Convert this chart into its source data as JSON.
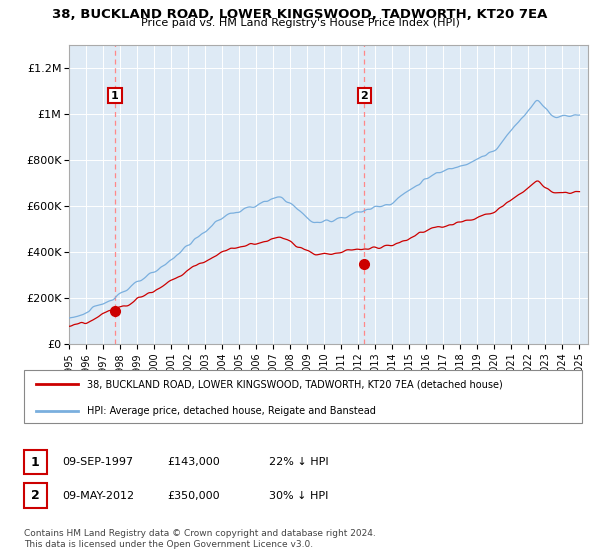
{
  "title": "38, BUCKLAND ROAD, LOWER KINGSWOOD, TADWORTH, KT20 7EA",
  "subtitle": "Price paid vs. HM Land Registry's House Price Index (HPI)",
  "legend_line1": "38, BUCKLAND ROAD, LOWER KINGSWOOD, TADWORTH, KT20 7EA (detached house)",
  "legend_line2": "HPI: Average price, detached house, Reigate and Banstead",
  "annotation1_label": "1",
  "annotation1_date": "09-SEP-1997",
  "annotation1_price": "£143,000",
  "annotation1_hpi": "22% ↓ HPI",
  "annotation2_label": "2",
  "annotation2_date": "09-MAY-2012",
  "annotation2_price": "£350,000",
  "annotation2_hpi": "30% ↓ HPI",
  "copyright": "Contains HM Land Registry data © Crown copyright and database right 2024.\nThis data is licensed under the Open Government Licence v3.0.",
  "sale1_year": 1997.7,
  "sale1_value": 143000,
  "sale2_year": 2012.35,
  "sale2_value": 350000,
  "red_line_color": "#cc0000",
  "blue_line_color": "#7aafde",
  "dashed_color": "#ff8888",
  "plot_bg_color": "#deeaf5",
  "background_color": "#ffffff",
  "grid_color": "#ffffff",
  "ylim": [
    0,
    1300000
  ],
  "xlim_start": 1995.0,
  "xlim_end": 2025.5,
  "yticks": [
    0,
    200000,
    400000,
    600000,
    800000,
    1000000,
    1200000
  ],
  "ytick_labels": [
    "£0",
    "£200K",
    "£400K",
    "£600K",
    "£800K",
    "£1M",
    "£1.2M"
  ]
}
